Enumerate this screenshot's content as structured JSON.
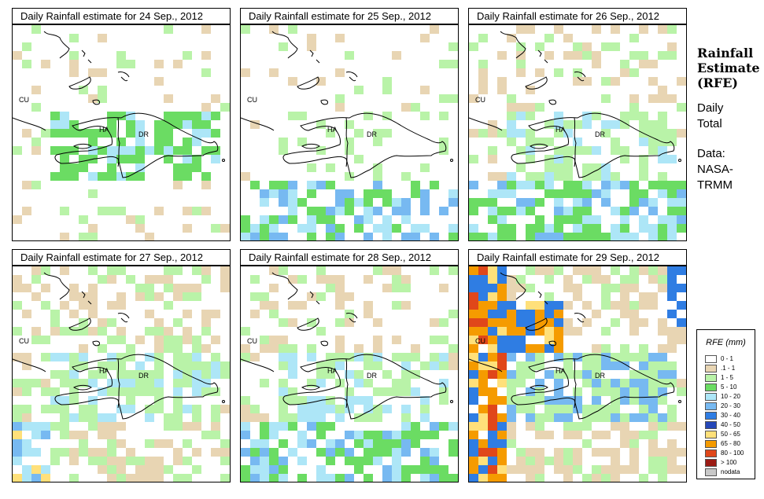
{
  "panels": [
    {
      "title": "Daily Rainfall estimate for  24 Sep., 2012",
      "rain": "low"
    },
    {
      "title": "Daily Rainfall estimate for  25 Sep., 2012",
      "rain": "south"
    },
    {
      "title": "Daily Rainfall estimate for  26 Sep., 2012",
      "rain": "medium"
    },
    {
      "title": "Daily Rainfall estimate for  27 Sep., 2012",
      "rain": "wide"
    },
    {
      "title": "Daily Rainfall estimate for  28 Sep., 2012",
      "rain": "medium"
    },
    {
      "title": "Daily Rainfall estimate for  29 Sep., 2012",
      "rain": "heavy"
    }
  ],
  "map_labels": {
    "cuba": "CU",
    "haiti": "HA",
    "dominican_republic": "DR"
  },
  "side": {
    "title1": "Rainfall",
    "title2": "Estimate",
    "title3": "(RFE)",
    "daily": "Daily",
    "total": "Total",
    "data": "Data:",
    "nasa": "NASA-",
    "trmm": "TRMM"
  },
  "legend": {
    "title": "RFE (mm)",
    "items": [
      {
        "label": "0 - 1",
        "color": "#ffffff"
      },
      {
        "label": ".1 - 1",
        "color": "#e8d5b3"
      },
      {
        "label": "1 - 5",
        "color": "#b9f3a8"
      },
      {
        "label": "5 - 10",
        "color": "#6bdc63"
      },
      {
        "label": "10 - 20",
        "color": "#ade6f7"
      },
      {
        "label": "20 - 30",
        "color": "#77b9f1"
      },
      {
        "label": "30 - 40",
        "color": "#2f7de3"
      },
      {
        "label": "40 - 50",
        "color": "#2547b8"
      },
      {
        "label": "50 - 65",
        "color": "#ffe07a"
      },
      {
        "label": "65 - 80",
        "color": "#f59b00"
      },
      {
        "label": "80 - 100",
        "color": "#e0471a"
      },
      {
        "label": "> 100",
        "color": "#9b1b14"
      },
      {
        "label": "nodata",
        "color": "#c8c8c8"
      }
    ]
  }
}
